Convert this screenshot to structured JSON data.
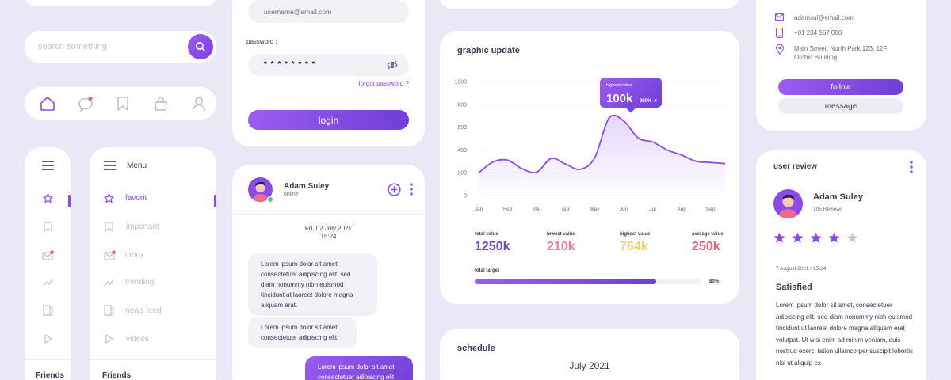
{
  "search": {
    "placeholder": "search something"
  },
  "sidebar_narrow": {
    "friends_label": "Friends"
  },
  "sidebar_menu": {
    "title": "Menu",
    "items": [
      {
        "label": "favorit"
      },
      {
        "label": "important"
      },
      {
        "label": "inbox"
      },
      {
        "label": "trending"
      },
      {
        "label": "news feed"
      },
      {
        "label": "videos"
      }
    ],
    "friends_label": "Friends"
  },
  "login": {
    "username_value": "username@email.com",
    "password_label": "password :",
    "password_value": "* * * * * * * *",
    "forgot_link": "forgot password ?",
    "login_button": "login"
  },
  "chat": {
    "name": "Adam Suley",
    "status": "online",
    "date": "Fri, 02 July 2021",
    "time": "15:24",
    "messages": [
      {
        "text": "Lorem ipsum dolor sit amet, consectetuer adipiscing elit, sed diam nonummy nibh euismod tincidunt ut laoreet dolore magna aliquam erat."
      },
      {
        "text": "Lorem ipsum dolor sit amet, consectetuer adipiscing elit"
      },
      {
        "text": "Lorem ipsum dolor sit amet, consectetuer adipiscing elit"
      }
    ]
  },
  "chart_data": {
    "type": "area",
    "title": "graphic update",
    "categories": [
      "Jan",
      "Feb",
      "Mar",
      "Apr",
      "May",
      "Jun",
      "Jul",
      "Aug",
      "Sep"
    ],
    "yticks": [
      "1000",
      "800",
      "600",
      "400",
      "200",
      "0"
    ],
    "ylim": [
      0,
      1000
    ],
    "x": [
      0,
      0.5,
      1,
      1.5,
      2,
      2.5,
      3,
      3.5,
      4,
      4.5,
      5,
      5.5,
      6,
      6.5,
      7,
      7.5,
      8,
      8.5
    ],
    "values": [
      200,
      295,
      310,
      235,
      205,
      325,
      275,
      230,
      330,
      680,
      655,
      505,
      470,
      400,
      355,
      300,
      290,
      280
    ],
    "tooltip": {
      "label": "highest value",
      "value": "100k",
      "change": "250% ↗"
    },
    "stats": [
      {
        "label": "total value",
        "value": "1250k",
        "color": "#6e46d8"
      },
      {
        "label": "lowest value",
        "value": "210k",
        "color": "#f07ea2"
      },
      {
        "label": "highest value",
        "value": "764k",
        "color": "#f5d36a"
      },
      {
        "label": "average value",
        "value": "250k",
        "color": "#f0607a"
      }
    ],
    "target": {
      "label": "total target",
      "percent_label": "80%",
      "fraction": 0.8
    }
  },
  "schedule": {
    "title": "schedule",
    "month": "July 2021"
  },
  "profile": {
    "email": "adamsul@email.com",
    "phone": "+01 234 567 000",
    "address": "Main Street, North Park 123, 12F Orchid Building.",
    "follow_button": "follow",
    "message_button": "message"
  },
  "review": {
    "title": "user review",
    "name": "Adam Suley",
    "count": "105 Reviews",
    "rating": 4,
    "max_rating": 5,
    "date": "7 August 2021 / 15:24",
    "headline": "Satisfied",
    "body": "Lorem ipsum dolor sit amet, consectetuer adipiscing elit, sed diam nonummy nibh euismod tincidunt ut laoreet dolore magna aliquam erat volutpat. Ut wisi enim ad minim veniam, quis nostrud exerci tation ullamcorper suscipit lobortis nisl ut aliquip ex"
  },
  "colors": {
    "accent": "#8c4be8",
    "background": "#e8e8f6"
  }
}
